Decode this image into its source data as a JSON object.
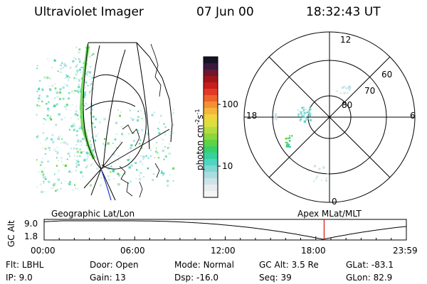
{
  "header": {
    "title": "Ultraviolet Imager",
    "date": "07 Jun 00",
    "time": "18:32:43 UT"
  },
  "colorbar": {
    "label": "photon cm",
    "label_sup1": "-2",
    "label_mid": "s",
    "label_sup2": "-1",
    "ticks": [
      "100",
      "10"
    ],
    "colors": [
      "#f5f5f5",
      "#e8ecef",
      "#cde3e8",
      "#aadde0",
      "#7fd8d3",
      "#4fd6c2",
      "#35d29f",
      "#39d06c",
      "#5dd345",
      "#8bd63c",
      "#b5dc3e",
      "#d8e03f",
      "#f0d43e",
      "#f5b53a",
      "#f58f34",
      "#f0622c",
      "#e23a24",
      "#c81d1e",
      "#a0151a",
      "#6b1830",
      "#3a1a3e",
      "#171224"
    ]
  },
  "left_panel": {
    "label": "Geographic Lat/Lon"
  },
  "polar_panel": {
    "label": "Apex MLat/MLT",
    "hour_labels": {
      "top": "12",
      "bottom": "0",
      "left": "18",
      "right": "6"
    },
    "lat_labels": [
      "60",
      "70",
      "80"
    ]
  },
  "altitude_plot": {
    "y_label": "GC Alt",
    "y_max": "9.0",
    "y_min": "1.8",
    "x_ticks": [
      "00:00",
      "06:00",
      "12:00",
      "18:00",
      "23:59"
    ],
    "marker_color": "#d62020"
  },
  "info": {
    "flt_label": "Flt:",
    "flt_value": "LBHL",
    "ip_label": "IP:",
    "ip_value": "9.0",
    "door_label": "Door:",
    "door_value": "Open",
    "gain_label": "Gain:",
    "gain_value": "13",
    "mode_label": "Mode:",
    "mode_value": "Normal",
    "dsp_label": "Dsp:",
    "dsp_value": "-16.0",
    "gcalt_label": "GC Alt:",
    "gcalt_value": "3.5 Re",
    "seq_label": "Seq:",
    "seq_value": "39",
    "glat_label": "GLat:",
    "glat_value": "-83.1",
    "glon_label": "GLon:",
    "glon_value": "82.9"
  }
}
